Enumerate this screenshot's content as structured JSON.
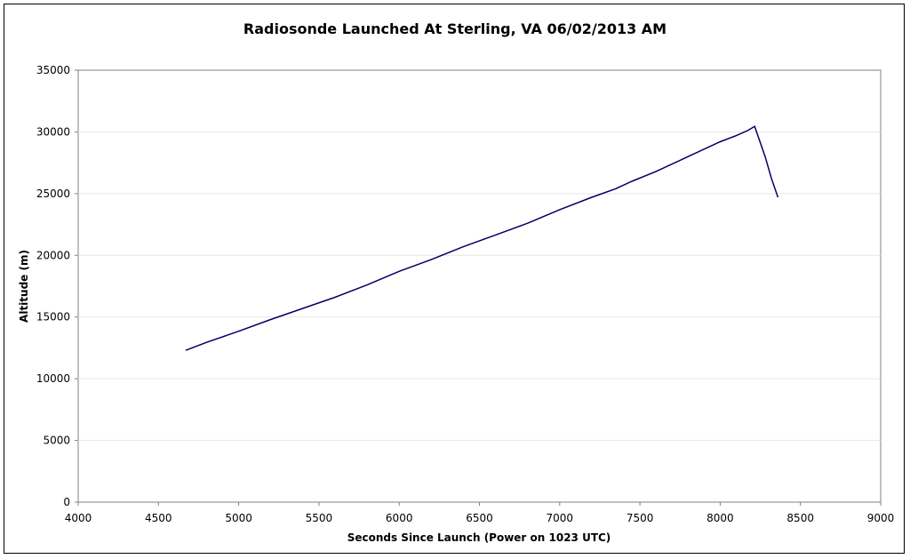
{
  "chart_data": {
    "type": "line",
    "title": "Radiosonde Launched At Sterling, VA 06/02/2013 AM",
    "xlabel": "Seconds Since Launch (Power on 1023 UTC)",
    "ylabel": "Altitude (m)",
    "xlim": [
      4000,
      9000
    ],
    "ylim": [
      0,
      35000
    ],
    "xticks": [
      4000,
      4500,
      5000,
      5500,
      6000,
      6500,
      7000,
      7500,
      8000,
      8500,
      9000
    ],
    "yticks": [
      0,
      5000,
      10000,
      15000,
      20000,
      25000,
      30000,
      35000
    ],
    "grid": "horizontal",
    "legend": "none",
    "line_color": "#000066",
    "series": [
      {
        "x": [
          4670,
          4800,
          5000,
          5200,
          5400,
          5600,
          5800,
          6000,
          6200,
          6400,
          6600,
          6800,
          7000,
          7200,
          7350,
          7450,
          7600,
          7800,
          8000,
          8100,
          8170,
          8215,
          8280,
          8320,
          8360
        ],
        "y": [
          12300,
          12950,
          13850,
          14800,
          15700,
          16600,
          17600,
          18700,
          19650,
          20700,
          21650,
          22600,
          23700,
          24700,
          25400,
          26000,
          26800,
          28000,
          29200,
          29700,
          30100,
          30450,
          28000,
          26200,
          24700
        ]
      }
    ]
  }
}
